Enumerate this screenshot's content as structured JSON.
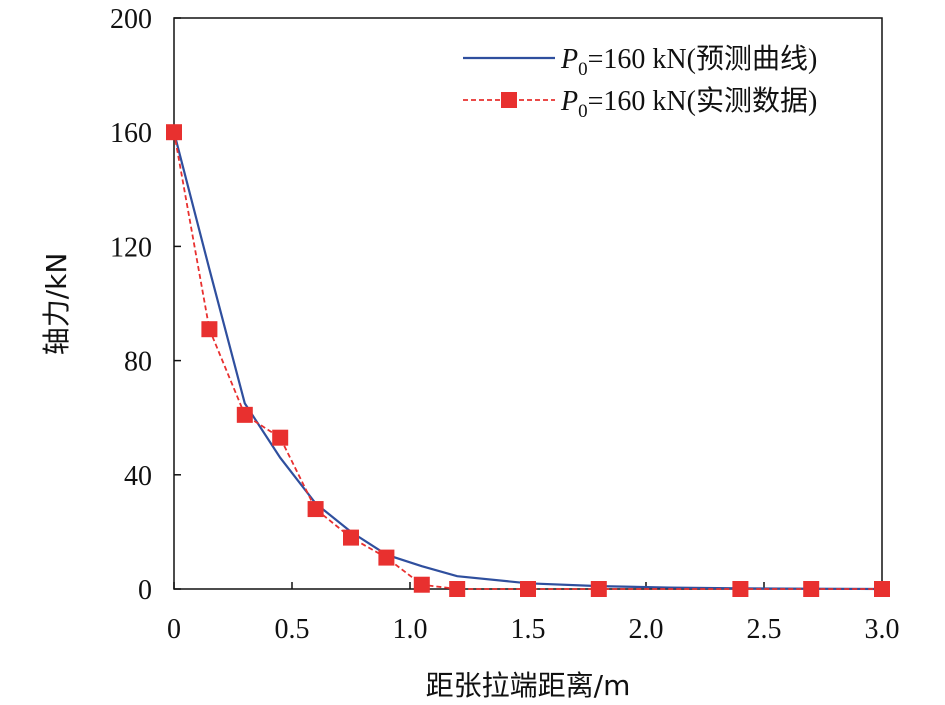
{
  "chart_data": {
    "type": "line",
    "title": "",
    "xlabel": "距张拉端距离/m",
    "ylabel": "轴力/kN",
    "xlim": [
      0,
      3.0
    ],
    "ylim": [
      0,
      200
    ],
    "xticks": [
      "0",
      "0.5",
      "1.0",
      "1.5",
      "2.0",
      "2.5",
      "3.0"
    ],
    "xtick_values": [
      0,
      0.5,
      1.0,
      1.5,
      2.0,
      2.5,
      3.0
    ],
    "yticks": [
      "0",
      "40",
      "80",
      "120",
      "160",
      "200"
    ],
    "ytick_values": [
      0,
      40,
      80,
      120,
      160,
      200
    ],
    "grid": false,
    "legend_position": "top-right",
    "series": [
      {
        "name": "P0=160 kN(预测曲线)",
        "legend_var": "P",
        "legend_sub": "0",
        "legend_rest": "=160 kN(预测曲线)",
        "color": "#2f4f9e",
        "style": "solid",
        "marker": "none",
        "x": [
          0,
          0.15,
          0.3,
          0.45,
          0.6,
          0.75,
          0.9,
          1.05,
          1.2,
          1.5,
          1.8,
          2.1,
          2.4,
          2.7,
          3.0
        ],
        "y": [
          160,
          112,
          65,
          46,
          30,
          20,
          12,
          8,
          4.5,
          2,
          1,
          0.5,
          0.2,
          0.1,
          0
        ]
      },
      {
        "name": "P0=160 kN(实测数据)",
        "legend_var": "P",
        "legend_sub": "0",
        "legend_rest": "=160 kN(实测数据)",
        "color": "#e8302f",
        "style": "dashed",
        "marker": "square",
        "x": [
          0,
          0.15,
          0.3,
          0.45,
          0.6,
          0.75,
          0.9,
          1.05,
          1.2,
          1.5,
          1.8,
          2.4,
          2.7,
          3.0
        ],
        "y": [
          160,
          91,
          61,
          53,
          28,
          18,
          11,
          1.5,
          0,
          0,
          0,
          0,
          0,
          0
        ]
      }
    ]
  }
}
